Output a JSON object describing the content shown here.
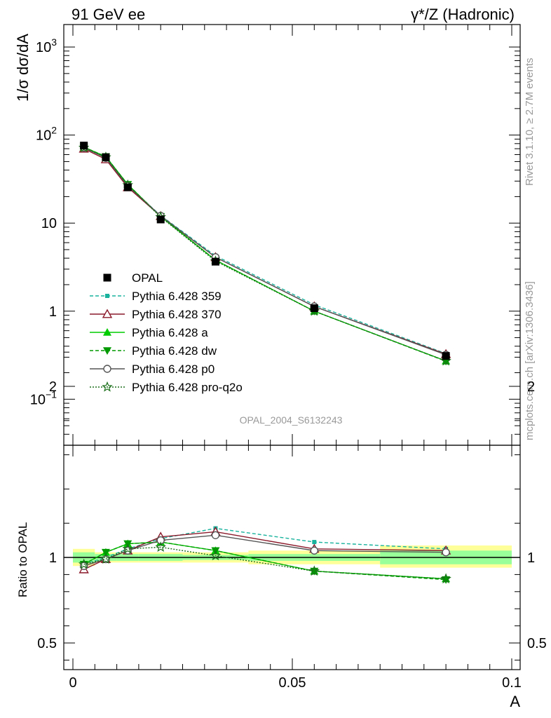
{
  "header": {
    "left": "91 GeV ee",
    "right": "γ*/Z (Hadronic)"
  },
  "side": {
    "rivet": "Rivet 3.1.10, ≥ 2.7M events",
    "mcplots": "mcplots.cern.ch [arXiv:1306.3436]"
  },
  "watermark": "OPAL_2004_S6132243",
  "chart_data": [
    {
      "type": "line",
      "panel": "main",
      "ylabel": "1/σ dσ/dA",
      "yscale": "log",
      "ylim": [
        0.03,
        1800
      ],
      "xlim": [
        -0.002,
        0.101
      ],
      "yticks": [
        {
          "v": 1000,
          "base": "10",
          "exp": "3"
        },
        {
          "v": 100,
          "base": "10",
          "exp": "2"
        },
        {
          "v": 10,
          "base": "10",
          "exp": ""
        },
        {
          "v": 1,
          "base": "1",
          "exp": ""
        },
        {
          "v": 0.1,
          "base": "10",
          "exp": "−1"
        }
      ],
      "x": [
        0.0025,
        0.0075,
        0.0125,
        0.02,
        0.0325,
        0.055,
        0.085
      ],
      "data": {
        "name": "OPAL",
        "values": [
          76,
          56,
          25.5,
          11,
          3.65,
          1.08,
          0.31
        ]
      },
      "series": [
        {
          "name": "Pythia 6.428 359",
          "values": [
            73,
            56,
            26.5,
            12.2,
            4.25,
            1.18,
            0.33
          ]
        },
        {
          "name": "Pythia 6.428 370",
          "values": [
            70,
            53,
            25.5,
            12.0,
            4.1,
            1.13,
            0.325
          ]
        },
        {
          "name": "Pythia 6.428 a",
          "values": [
            73,
            57,
            27.5,
            11.9,
            3.8,
            1.0,
            0.272
          ]
        },
        {
          "name": "Pythia 6.428 dw",
          "values": [
            73,
            57,
            27.5,
            11.9,
            3.8,
            1.0,
            0.27
          ]
        },
        {
          "name": "Pythia 6.428 p0",
          "values": [
            72,
            55,
            26.5,
            12.1,
            4.1,
            1.13,
            0.32
          ]
        },
        {
          "name": "Pythia 6.428 pro-q2o",
          "values": [
            72,
            56,
            27,
            11.7,
            3.7,
            1.0,
            0.272
          ]
        }
      ]
    },
    {
      "type": "line",
      "panel": "ratio",
      "ylabel": "Ratio to OPAL",
      "xlabel": "A",
      "ylim": [
        0.3,
        2.3
      ],
      "yticks": [
        "0.5",
        "1",
        "2"
      ],
      "xticks": [
        "0",
        "0.05",
        "0.1"
      ],
      "x": [
        0.0025,
        0.0075,
        0.0125,
        0.02,
        0.0325,
        0.055,
        0.085
      ],
      "series": [
        {
          "name": "Pythia 6.428 359",
          "values": [
            0.96,
            1.0,
            1.05,
            1.11,
            1.17,
            1.09,
            1.05
          ]
        },
        {
          "name": "Pythia 6.428 370",
          "values": [
            0.93,
            0.99,
            1.04,
            1.12,
            1.15,
            1.05,
            1.04
          ]
        },
        {
          "name": "Pythia 6.428 a",
          "values": [
            0.96,
            1.03,
            1.08,
            1.09,
            1.04,
            0.92,
            0.875
          ]
        },
        {
          "name": "Pythia 6.428 dw",
          "values": [
            0.96,
            1.03,
            1.08,
            1.09,
            1.04,
            0.92,
            0.87
          ]
        },
        {
          "name": "Pythia 6.428 p0",
          "values": [
            0.95,
            0.99,
            1.04,
            1.1,
            1.13,
            1.04,
            1.03
          ]
        },
        {
          "name": "Pythia 6.428 pro-q2o",
          "values": [
            0.96,
            0.99,
            1.05,
            1.06,
            1.01,
            0.92,
            0.875
          ]
        }
      ],
      "bands": [
        {
          "x0": 0.0,
          "x1": 0.005,
          "outer": [
            0.95,
            1.05
          ],
          "inner": [
            0.97,
            1.03
          ]
        },
        {
          "x0": 0.005,
          "x1": 0.01,
          "outer": [
            0.97,
            1.03
          ],
          "inner": [
            0.98,
            1.02
          ]
        },
        {
          "x0": 0.01,
          "x1": 0.015,
          "outer": [
            0.97,
            1.03
          ],
          "inner": [
            0.98,
            1.02
          ]
        },
        {
          "x0": 0.015,
          "x1": 0.025,
          "outer": [
            0.97,
            1.03
          ],
          "inner": [
            0.98,
            1.02
          ]
        },
        {
          "x0": 0.025,
          "x1": 0.04,
          "outer": [
            0.97,
            1.03
          ],
          "inner": [
            0.985,
            1.015
          ]
        },
        {
          "x0": 0.04,
          "x1": 0.07,
          "outer": [
            0.96,
            1.04
          ],
          "inner": [
            0.98,
            1.02
          ]
        },
        {
          "x0": 0.07,
          "x1": 0.1,
          "outer": [
            0.94,
            1.07
          ],
          "inner": [
            0.96,
            1.04
          ]
        }
      ]
    }
  ],
  "styles": [
    {
      "color": "#19b39d",
      "dash": "5,3",
      "marker": "square-small"
    },
    {
      "color": "#8b1a2b",
      "dash": "",
      "marker": "triangle-open"
    },
    {
      "color": "#00cc00",
      "dash": "",
      "marker": "triangle-filled"
    },
    {
      "color": "#009900",
      "dash": "5,3",
      "marker": "triangle-down-filled"
    },
    {
      "color": "#555555",
      "dash": "",
      "marker": "circle-open"
    },
    {
      "color": "#1a6e1a",
      "dash": "2,2",
      "marker": "star-open"
    }
  ],
  "band_colors": {
    "outer": "#ffff99",
    "inner": "#99ff99"
  }
}
